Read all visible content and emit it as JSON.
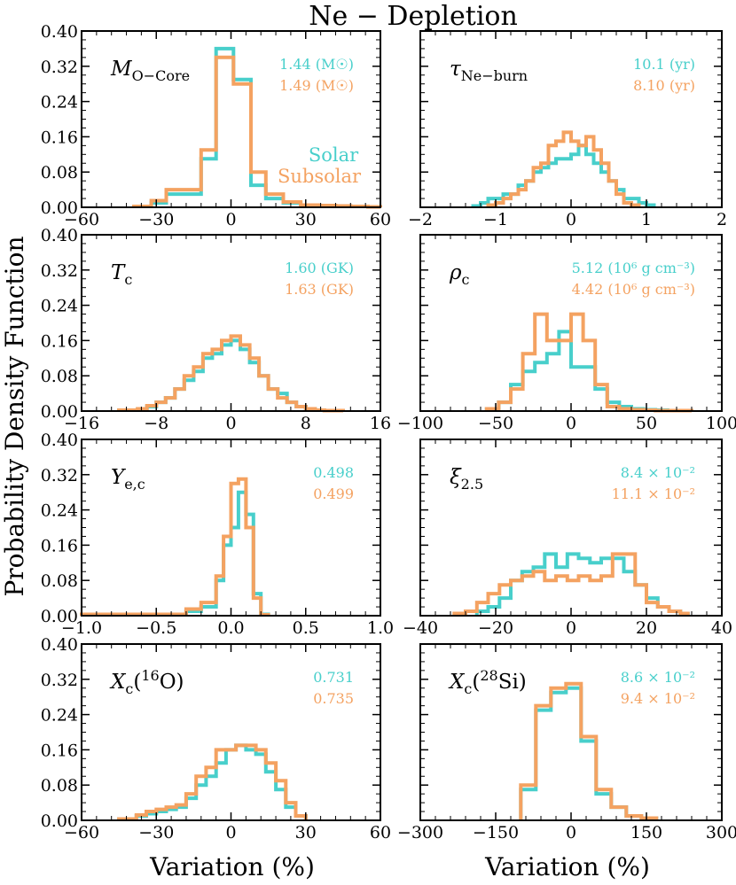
{
  "figure": {
    "title": "Ne − Depletion",
    "ylabel": "Probability Density Function",
    "xlabel": "Variation (%)",
    "colors": {
      "solar": "#48CFCB",
      "subsolar": "#F4A261"
    }
  },
  "chart_data": [
    {
      "type": "histogram",
      "id": "m_ocore",
      "label_main": "M",
      "label_sub": "O−Core",
      "legend": [
        "Solar",
        "Subsolar"
      ],
      "solar_value": "1.44 (M☉)",
      "subsolar_value": "1.49 (M☉)",
      "xlim": [
        -60,
        60
      ],
      "xticks": [
        -60,
        -30,
        0,
        30,
        60
      ],
      "ylim": [
        0,
        0.4
      ],
      "yticks": [
        0.0,
        0.08,
        0.16,
        0.24,
        0.32,
        0.4
      ],
      "series": [
        {
          "name": "Solar",
          "edges": [
            -39,
            -32,
            -26,
            -19,
            -12,
            -6,
            1,
            8,
            14,
            21,
            28,
            35,
            42,
            48,
            55,
            60
          ],
          "values": [
            0.002,
            0.01,
            0.03,
            0.03,
            0.11,
            0.36,
            0.29,
            0.05,
            0.02,
            0.01,
            0.005,
            0.004,
            0.003,
            0.002,
            0.001
          ]
        },
        {
          "name": "Subsolar",
          "edges": [
            -39,
            -32,
            -26,
            -19,
            -12,
            -6,
            1,
            8,
            14,
            21,
            28,
            35,
            42,
            48,
            55,
            60
          ],
          "values": [
            0.002,
            0.015,
            0.04,
            0.04,
            0.13,
            0.34,
            0.28,
            0.08,
            0.03,
            0.012,
            0.005,
            0.004,
            0.003,
            0.002,
            0.001
          ]
        }
      ]
    },
    {
      "type": "histogram",
      "id": "tau_neburn",
      "label_main": "τ",
      "label_sub": "Ne−burn",
      "solar_value": "10.1 (yr)",
      "subsolar_value": "8.10 (yr)",
      "xlim": [
        -2,
        2
      ],
      "xticks": [
        -2,
        -1,
        0,
        1,
        2
      ],
      "ylim": [
        0,
        0.4
      ],
      "yticks": [
        0.0,
        0.08,
        0.16,
        0.24,
        0.32,
        0.4
      ],
      "series": [
        {
          "name": "Solar",
          "edges": [
            -1.3,
            -1.2,
            -1.1,
            -1.0,
            -0.9,
            -0.8,
            -0.7,
            -0.6,
            -0.5,
            -0.4,
            -0.3,
            -0.2,
            -0.1,
            0.0,
            0.1,
            0.2,
            0.3,
            0.4,
            0.5,
            0.6,
            0.7,
            0.8,
            0.9,
            1.0,
            1.1
          ],
          "values": [
            0.003,
            0.01,
            0.02,
            0.02,
            0.03,
            0.03,
            0.05,
            0.06,
            0.08,
            0.09,
            0.1,
            0.11,
            0.11,
            0.12,
            0.14,
            0.12,
            0.1,
            0.08,
            0.06,
            0.04,
            0.02,
            0.02,
            0.01,
            0.005
          ]
        },
        {
          "name": "Subsolar",
          "edges": [
            -1.1,
            -1.0,
            -0.9,
            -0.8,
            -0.7,
            -0.6,
            -0.5,
            -0.4,
            -0.3,
            -0.2,
            -0.1,
            0.0,
            0.1,
            0.2,
            0.3,
            0.4,
            0.5,
            0.6,
            0.7,
            0.8,
            0.9
          ],
          "values": [
            0.005,
            0.01,
            0.02,
            0.03,
            0.04,
            0.06,
            0.09,
            0.1,
            0.14,
            0.15,
            0.17,
            0.15,
            0.14,
            0.16,
            0.13,
            0.1,
            0.06,
            0.03,
            0.01,
            0.005
          ]
        }
      ]
    },
    {
      "type": "histogram",
      "id": "t_c",
      "label_main": "T",
      "label_sub": "c",
      "solar_value": "1.60 (GK)",
      "subsolar_value": "1.63 (GK)",
      "xlim": [
        -16,
        16
      ],
      "xticks": [
        -16,
        -8,
        0,
        8,
        16
      ],
      "ylim": [
        0,
        0.4
      ],
      "yticks": [
        0.0,
        0.08,
        0.16,
        0.24,
        0.32,
        0.4
      ],
      "series": [
        {
          "name": "Solar",
          "edges": [
            -12,
            -10,
            -9,
            -8,
            -7,
            -6,
            -5,
            -4,
            -3,
            -2,
            -1,
            0,
            1,
            2,
            3,
            4,
            5,
            6,
            7,
            8,
            9,
            10,
            12
          ],
          "values": [
            0.002,
            0.005,
            0.01,
            0.02,
            0.03,
            0.05,
            0.07,
            0.09,
            0.12,
            0.13,
            0.15,
            0.16,
            0.14,
            0.11,
            0.08,
            0.05,
            0.04,
            0.02,
            0.01,
            0.005,
            0.002,
            0.001
          ]
        },
        {
          "name": "Subsolar",
          "edges": [
            -12,
            -10,
            -9,
            -8,
            -7,
            -6,
            -5,
            -4,
            -3,
            -2,
            -1,
            0,
            1,
            2,
            3,
            4,
            5,
            6,
            7,
            8,
            9,
            10,
            12
          ],
          "values": [
            0.002,
            0.005,
            0.012,
            0.02,
            0.03,
            0.05,
            0.08,
            0.1,
            0.13,
            0.14,
            0.16,
            0.17,
            0.15,
            0.12,
            0.08,
            0.05,
            0.03,
            0.02,
            0.01,
            0.005,
            0.002,
            0.001
          ]
        }
      ]
    },
    {
      "type": "histogram",
      "id": "rho_c",
      "label_main": "ρ",
      "label_sub": "c",
      "solar_value": "5.12 (10⁶ g cm⁻³)",
      "subsolar_value": "4.42 (10⁶ g cm⁻³)",
      "xlim": [
        -100,
        100
      ],
      "xticks": [
        -100,
        -50,
        0,
        50,
        100
      ],
      "ylim": [
        0,
        0.4
      ],
      "yticks": [
        0.0,
        0.08,
        0.16,
        0.24,
        0.32,
        0.4
      ],
      "series": [
        {
          "name": "Solar",
          "edges": [
            -56,
            -48,
            -40,
            -32,
            -24,
            -16,
            -8,
            0,
            8,
            16,
            24,
            32,
            40,
            48,
            56,
            64,
            72,
            80
          ],
          "values": [
            0.005,
            0.02,
            0.06,
            0.09,
            0.11,
            0.13,
            0.18,
            0.1,
            0.1,
            0.05,
            0.02,
            0.01,
            0.005,
            0.003,
            0.002,
            0.001,
            0.001
          ]
        },
        {
          "name": "Subsolar",
          "edges": [
            -56,
            -48,
            -40,
            -32,
            -24,
            -16,
            -8,
            0,
            8,
            16,
            24,
            32,
            40,
            48,
            56,
            64,
            72,
            80
          ],
          "values": [
            0.005,
            0.02,
            0.05,
            0.13,
            0.22,
            0.16,
            0.16,
            0.22,
            0.16,
            0.06,
            0.01,
            0.005,
            0.003,
            0.002,
            0.001,
            0.001,
            0.001
          ]
        }
      ]
    },
    {
      "type": "histogram",
      "id": "ye_c",
      "label_main": "Y",
      "label_sub": "e,c",
      "solar_value": "0.498",
      "subsolar_value": "0.499",
      "xlim": [
        -1.0,
        1.0
      ],
      "xticks": [
        -1.0,
        -0.5,
        0.0,
        0.5,
        1.0
      ],
      "ylim": [
        0,
        0.4
      ],
      "yticks": [
        0.0,
        0.08,
        0.16,
        0.24,
        0.32,
        0.4
      ],
      "series": [
        {
          "name": "Solar",
          "edges": [
            -1.0,
            -0.3,
            -0.2,
            -0.1,
            -0.05,
            0.0,
            0.05,
            0.1,
            0.15,
            0.2,
            0.25
          ],
          "values": [
            0.003,
            0.01,
            0.02,
            0.08,
            0.16,
            0.2,
            0.28,
            0.23,
            0.05,
            0.003
          ]
        },
        {
          "name": "Subsolar",
          "edges": [
            -1.0,
            -0.3,
            -0.2,
            -0.1,
            -0.05,
            0.0,
            0.05,
            0.1,
            0.15,
            0.2,
            0.25
          ],
          "values": [
            0.003,
            0.015,
            0.03,
            0.09,
            0.18,
            0.3,
            0.31,
            0.2,
            0.04,
            0.002
          ]
        }
      ]
    },
    {
      "type": "histogram",
      "id": "xi_25",
      "label_main": "ξ",
      "label_sub": "2.5",
      "solar_value": "8.4 × 10⁻²",
      "subsolar_value": "11.1 × 10⁻²",
      "xlim": [
        -40,
        40
      ],
      "xticks": [
        -40,
        -20,
        0,
        20,
        40
      ],
      "ylim": [
        0,
        0.4
      ],
      "yticks": [
        0.0,
        0.08,
        0.16,
        0.24,
        0.32,
        0.4
      ],
      "series": [
        {
          "name": "Solar",
          "edges": [
            -25,
            -22,
            -19,
            -16,
            -13,
            -10,
            -7,
            -4,
            -1,
            2,
            5,
            8,
            11,
            14,
            17,
            20,
            23,
            26,
            29,
            31
          ],
          "values": [
            0.01,
            0.02,
            0.04,
            0.08,
            0.1,
            0.11,
            0.14,
            0.11,
            0.14,
            0.13,
            0.12,
            0.13,
            0.13,
            0.1,
            0.07,
            0.04,
            0.02,
            0.01,
            0.005
          ]
        },
        {
          "name": "Subsolar",
          "edges": [
            -31,
            -28,
            -25,
            -22,
            -19,
            -16,
            -13,
            -10,
            -7,
            -4,
            -1,
            2,
            5,
            8,
            11,
            14,
            17,
            20,
            23,
            26,
            29,
            31
          ],
          "values": [
            0.005,
            0.01,
            0.03,
            0.05,
            0.07,
            0.08,
            0.09,
            0.1,
            0.08,
            0.09,
            0.08,
            0.09,
            0.08,
            0.09,
            0.14,
            0.14,
            0.07,
            0.03,
            0.02,
            0.01,
            0.005
          ]
        }
      ]
    },
    {
      "type": "histogram",
      "id": "x_o16",
      "label_main": "X",
      "label_sub": "c",
      "label_iso": "16",
      "label_el": "O",
      "solar_value": "0.731",
      "subsolar_value": "0.735",
      "xlim": [
        -60,
        60
      ],
      "xticks": [
        -60,
        -30,
        0,
        30,
        60
      ],
      "ylim": [
        0,
        0.4
      ],
      "yticks": [
        0.0,
        0.08,
        0.16,
        0.24,
        0.32,
        0.4
      ],
      "series": [
        {
          "name": "Solar",
          "edges": [
            -45,
            -38,
            -34,
            -30,
            -26,
            -22,
            -18,
            -14,
            -10,
            -6,
            -2,
            2,
            6,
            10,
            14,
            18,
            22,
            26,
            30
          ],
          "values": [
            0.003,
            0.01,
            0.015,
            0.02,
            0.025,
            0.03,
            0.05,
            0.08,
            0.1,
            0.13,
            0.16,
            0.17,
            0.16,
            0.15,
            0.11,
            0.07,
            0.03,
            0.01
          ]
        },
        {
          "name": "Subsolar",
          "edges": [
            -45,
            -38,
            -34,
            -30,
            -26,
            -22,
            -18,
            -14,
            -10,
            -6,
            -2,
            2,
            6,
            10,
            14,
            18,
            22,
            26,
            30
          ],
          "values": [
            0.003,
            0.012,
            0.02,
            0.025,
            0.03,
            0.035,
            0.06,
            0.1,
            0.12,
            0.16,
            0.16,
            0.17,
            0.17,
            0.16,
            0.13,
            0.09,
            0.04,
            0.01
          ]
        }
      ]
    },
    {
      "type": "histogram",
      "id": "x_si28",
      "label_main": "X",
      "label_sub": "c",
      "label_iso": "28",
      "label_el": "Si",
      "solar_value": "8.6 × 10⁻²",
      "subsolar_value": "9.4 × 10⁻²",
      "xlim": [
        -300,
        300
      ],
      "xticks": [
        -300,
        -150,
        0,
        150,
        300
      ],
      "ylim": [
        0,
        0.4
      ],
      "yticks": [
        0.0,
        0.08,
        0.16,
        0.24,
        0.32,
        0.4
      ],
      "series": [
        {
          "name": "Solar",
          "edges": [
            -100,
            -70,
            -40,
            -10,
            20,
            50,
            80,
            110,
            140,
            170
          ],
          "values": [
            0.07,
            0.25,
            0.29,
            0.3,
            0.18,
            0.06,
            0.03,
            0.01,
            0.005
          ]
        },
        {
          "name": "Subsolar",
          "edges": [
            -100,
            -70,
            -40,
            -10,
            20,
            50,
            80,
            110,
            140,
            170
          ],
          "values": [
            0.08,
            0.26,
            0.3,
            0.31,
            0.19,
            0.07,
            0.03,
            0.01,
            0.005
          ]
        }
      ]
    }
  ]
}
